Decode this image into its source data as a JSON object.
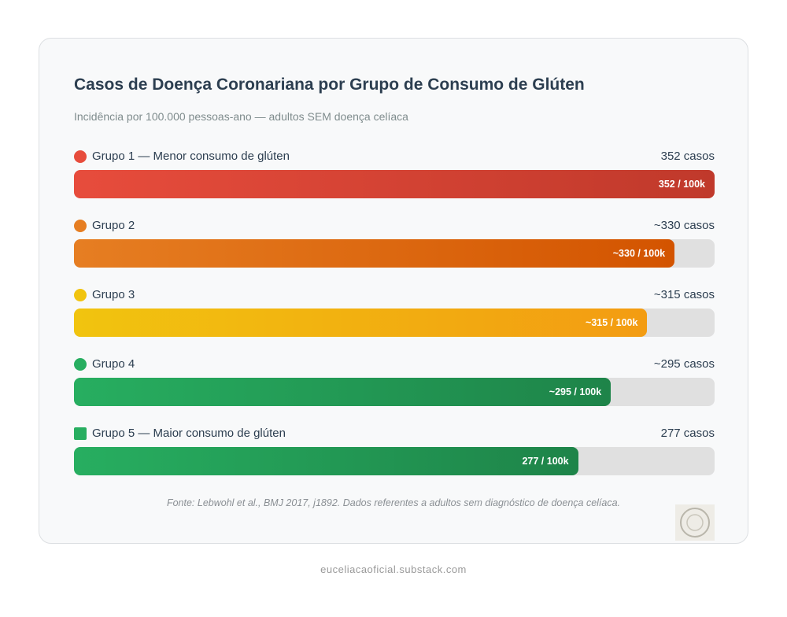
{
  "chart_data": {
    "type": "bar",
    "orientation": "horizontal",
    "title": "Casos de Doença Coronariana por Grupo de Consumo de Glúten",
    "subtitle": "Incidência por 100.000 pessoas-ano — adultos SEM doença celíaca",
    "categories": [
      "Grupo 1 — Menor consumo de glúten",
      "Grupo 2",
      "Grupo 3",
      "Grupo 4",
      "Grupo 5 — Maior consumo de glúten"
    ],
    "values": [
      352,
      330,
      315,
      295,
      277
    ],
    "value_labels": [
      "352 casos",
      "~330 casos",
      "~315 casos",
      "~295 casos",
      "277 casos"
    ],
    "bar_labels": [
      "352 / 100k",
      "~330 / 100k",
      "~315 / 100k",
      "~295 / 100k",
      "277 / 100k"
    ],
    "colors": [
      [
        "#e74c3c",
        "#c0392b"
      ],
      [
        "#e67e22",
        "#d35400"
      ],
      [
        "#f1c40f",
        "#f39c12"
      ],
      [
        "#27ae60",
        "#1e8449"
      ],
      [
        "#27ae60",
        "#1e8449"
      ]
    ],
    "source": "Fonte: Lebwohl et al., BMJ 2017, j1892. Dados referentes a adultos sem diagnóstico de doença celíaca.",
    "footer": "euceliacaoficial.substack.com"
  }
}
